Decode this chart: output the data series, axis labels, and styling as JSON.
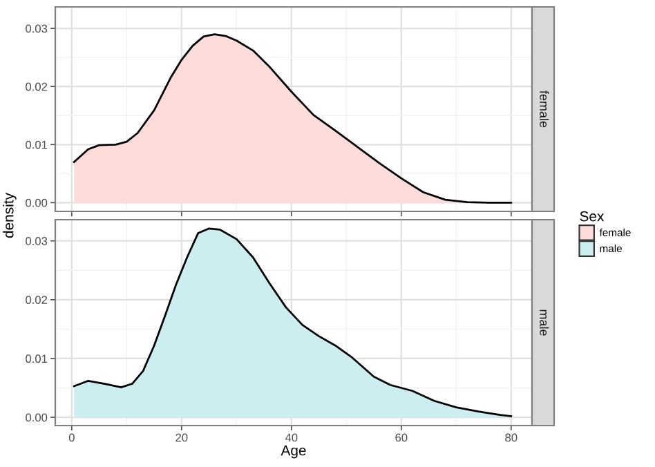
{
  "chart_data": [
    {
      "type": "area",
      "ylabel": "density",
      "legend_title": "Sex",
      "legend": "right",
      "grid": true,
      "tick_labels": "y",
      "xlim": [
        -3.0,
        83.8
      ],
      "xticks": [
        0,
        20,
        40,
        60,
        80
      ],
      "ylim": [
        -0.0015,
        0.0337
      ],
      "yticks": [
        {
          "value": 0,
          "label": "0.00"
        },
        {
          "value": 0.01,
          "label": "0.01"
        },
        {
          "value": 0.02,
          "label": "0.02"
        },
        {
          "value": 0.03,
          "label": "0.03"
        }
      ],
      "series": [
        {
          "name": "female",
          "color": "#fddcda",
          "x": [
            0.42,
            3,
            5,
            8,
            10,
            12,
            15,
            18,
            20,
            22,
            24,
            26,
            28,
            30,
            33,
            36,
            40,
            44,
            48,
            52,
            56,
            60,
            64,
            68,
            72,
            76,
            80
          ],
          "values": [
            0.007,
            0.0092,
            0.0099,
            0.01,
            0.0105,
            0.012,
            0.0159,
            0.0215,
            0.0246,
            0.027,
            0.0286,
            0.029,
            0.0287,
            0.0279,
            0.0262,
            0.0234,
            0.0191,
            0.0151,
            0.0124,
            0.0096,
            0.0068,
            0.0042,
            0.0018,
            0.0005,
            0.0001,
            0.0,
            0.0
          ]
        }
      ]
    },
    {
      "type": "area",
      "xlabel": "Age",
      "grid": true,
      "xlim": [
        -3.0,
        83.8
      ],
      "xticks": [
        0,
        20,
        40,
        60,
        80
      ],
      "ylim": [
        -0.0014,
        0.0336
      ],
      "yticks": [
        {
          "value": 0,
          "label": "0.00"
        },
        {
          "value": 0.01,
          "label": "0.01"
        },
        {
          "value": 0.02,
          "label": "0.02"
        },
        {
          "value": 0.03,
          "label": "0.03"
        }
      ],
      "series": [
        {
          "name": "male",
          "color": "#cdeef0",
          "x": [
            0.42,
            3,
            6,
            9,
            11,
            13,
            15,
            17,
            19,
            21,
            23,
            25,
            27,
            30,
            33,
            36,
            39,
            42,
            45,
            48,
            51,
            55,
            58,
            62,
            66,
            70,
            74,
            78,
            80
          ],
          "values": [
            0.0053,
            0.0062,
            0.0057,
            0.0051,
            0.0057,
            0.0079,
            0.0122,
            0.0173,
            0.0226,
            0.0272,
            0.0313,
            0.0321,
            0.0319,
            0.0303,
            0.0272,
            0.0228,
            0.0187,
            0.0157,
            0.0138,
            0.0122,
            0.0102,
            0.0069,
            0.0055,
            0.0045,
            0.0028,
            0.0017,
            0.001,
            0.0004,
            0.0002
          ]
        }
      ]
    }
  ]
}
